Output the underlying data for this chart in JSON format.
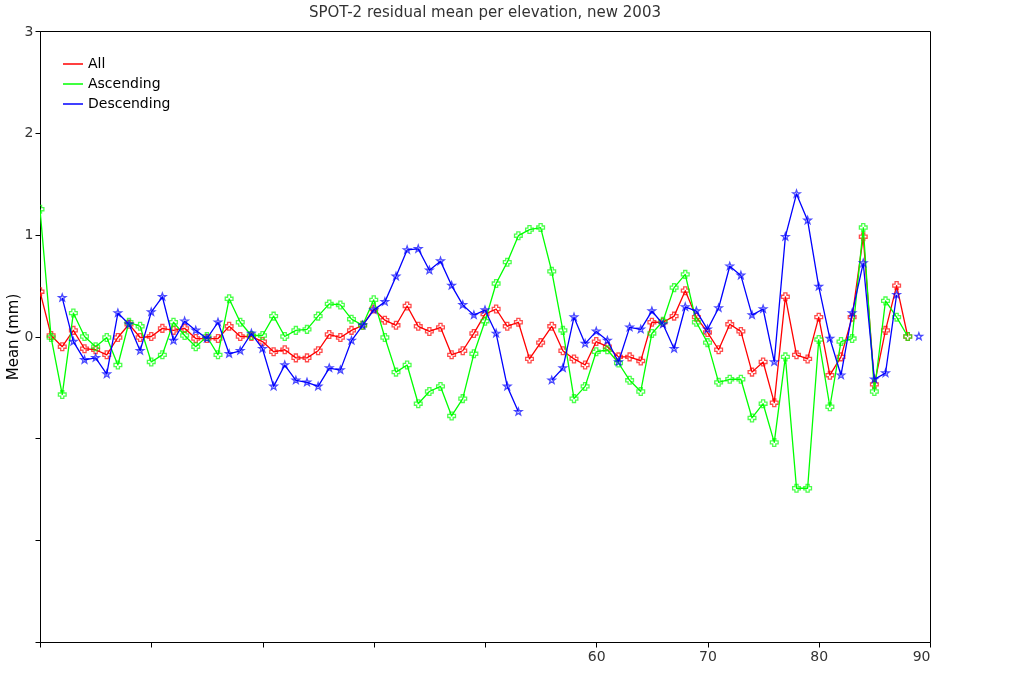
{
  "chart_data": {
    "type": "line",
    "title": "SPOT-2 residual mean per elevation, new 2003",
    "ylabel": "Mean (mm)",
    "x": [
      10,
      11,
      12,
      13,
      14,
      15,
      16,
      17,
      18,
      19,
      20,
      21,
      22,
      23,
      24,
      25,
      26,
      27,
      28,
      29,
      30,
      31,
      32,
      33,
      34,
      35,
      36,
      37,
      38,
      39,
      40,
      41,
      42,
      43,
      44,
      45,
      46,
      47,
      48,
      49,
      50,
      51,
      52,
      53,
      54,
      55,
      56,
      57,
      58,
      59,
      60,
      61,
      62,
      63,
      64,
      65,
      66,
      67,
      68,
      69,
      70,
      71,
      72,
      73,
      74,
      75,
      76,
      77,
      78,
      79,
      80,
      81,
      82,
      83,
      84,
      85,
      86,
      87,
      88,
      89
    ],
    "series": [
      {
        "name": "All",
        "color": "#ff0000",
        "marker": "cross",
        "values": [
          0.44,
          0.01,
          -0.1,
          0.06,
          -0.12,
          -0.13,
          -0.18,
          -0.01,
          0.12,
          -0.01,
          0.0,
          0.08,
          0.06,
          0.08,
          -0.02,
          -0.02,
          -0.02,
          0.1,
          0.0,
          0.0,
          -0.05,
          -0.15,
          -0.13,
          -0.21,
          -0.21,
          -0.14,
          0.02,
          -0.01,
          0.06,
          0.11,
          0.27,
          0.16,
          0.11,
          0.3,
          0.1,
          0.05,
          0.09,
          -0.18,
          -0.14,
          0.03,
          0.22,
          0.27,
          0.1,
          0.14,
          -0.22,
          -0.06,
          0.1,
          -0.14,
          -0.22,
          -0.28,
          -0.05,
          -0.1,
          -0.2,
          -0.2,
          -0.24,
          0.14,
          0.14,
          0.2,
          0.45,
          0.19,
          0.04,
          -0.13,
          0.12,
          0.05,
          -0.35,
          -0.25,
          -0.65,
          0.39,
          -0.18,
          -0.22,
          0.19,
          -0.38,
          -0.2,
          0.19,
          0.98,
          -0.47,
          0.06,
          0.5,
          0.0,
          null
        ]
      },
      {
        "name": "Ascending",
        "color": "#00ff00",
        "marker": "cross",
        "values": [
          1.25,
          -0.01,
          -0.57,
          0.23,
          0.0,
          -0.1,
          -0.01,
          -0.28,
          0.14,
          0.1,
          -0.25,
          -0.18,
          0.14,
          0.01,
          -0.1,
          0.0,
          -0.18,
          0.37,
          0.14,
          0.01,
          0.01,
          0.2,
          0.0,
          0.06,
          0.07,
          0.2,
          0.32,
          0.31,
          0.17,
          0.11,
          0.36,
          -0.01,
          -0.35,
          -0.28,
          -0.66,
          -0.54,
          -0.49,
          -0.78,
          -0.61,
          -0.17,
          0.15,
          0.52,
          0.73,
          0.99,
          1.05,
          1.07,
          0.64,
          0.06,
          -0.61,
          -0.49,
          -0.15,
          -0.13,
          -0.26,
          -0.43,
          -0.54,
          0.03,
          0.15,
          0.48,
          0.61,
          0.14,
          -0.06,
          -0.45,
          -0.42,
          -0.42,
          -0.8,
          -0.66,
          -1.04,
          -0.2,
          -1.49,
          -1.49,
          -0.03,
          -0.69,
          -0.05,
          -0.02,
          1.07,
          -0.54,
          0.35,
          0.19,
          0.0,
          null
        ]
      },
      {
        "name": "Descending",
        "color": "#0000ff",
        "marker": "star",
        "values": [
          null,
          null,
          0.38,
          -0.05,
          -0.23,
          -0.21,
          -0.37,
          0.23,
          0.12,
          -0.14,
          0.24,
          0.39,
          -0.04,
          0.15,
          0.06,
          -0.02,
          0.14,
          -0.17,
          -0.14,
          0.03,
          -0.12,
          -0.49,
          -0.28,
          -0.43,
          -0.45,
          -0.49,
          -0.31,
          -0.33,
          -0.04,
          0.11,
          0.26,
          0.34,
          0.59,
          0.85,
          0.86,
          0.65,
          0.74,
          0.5,
          0.31,
          0.21,
          0.26,
          0.03,
          -0.49,
          -0.74,
          null,
          null,
          -0.43,
          -0.31,
          0.19,
          -0.07,
          0.05,
          -0.04,
          -0.25,
          0.09,
          0.07,
          0.25,
          0.12,
          -0.12,
          0.29,
          0.25,
          0.07,
          0.28,
          0.69,
          0.6,
          0.21,
          0.27,
          -0.25,
          0.98,
          1.4,
          1.14,
          0.49,
          -0.02,
          -0.38,
          0.23,
          0.72,
          -0.42,
          -0.36,
          0.41,
          null,
          0.0
        ]
      }
    ],
    "xlim": [
      10,
      90
    ],
    "xticks": [
      {
        "value": 10,
        "label": null
      },
      {
        "value": 20,
        "label": null
      },
      {
        "value": 30,
        "label": null
      },
      {
        "value": 40,
        "label": null
      },
      {
        "value": 50,
        "label": null
      },
      60,
      70,
      80,
      90
    ],
    "ylim": [
      -3,
      3
    ],
    "yticks": [
      {
        "value": -3,
        "label": null
      },
      {
        "value": -2,
        "label": null
      },
      {
        "value": -1,
        "label": null
      },
      0,
      1,
      2,
      3
    ],
    "grid": false,
    "legend": "top left"
  }
}
